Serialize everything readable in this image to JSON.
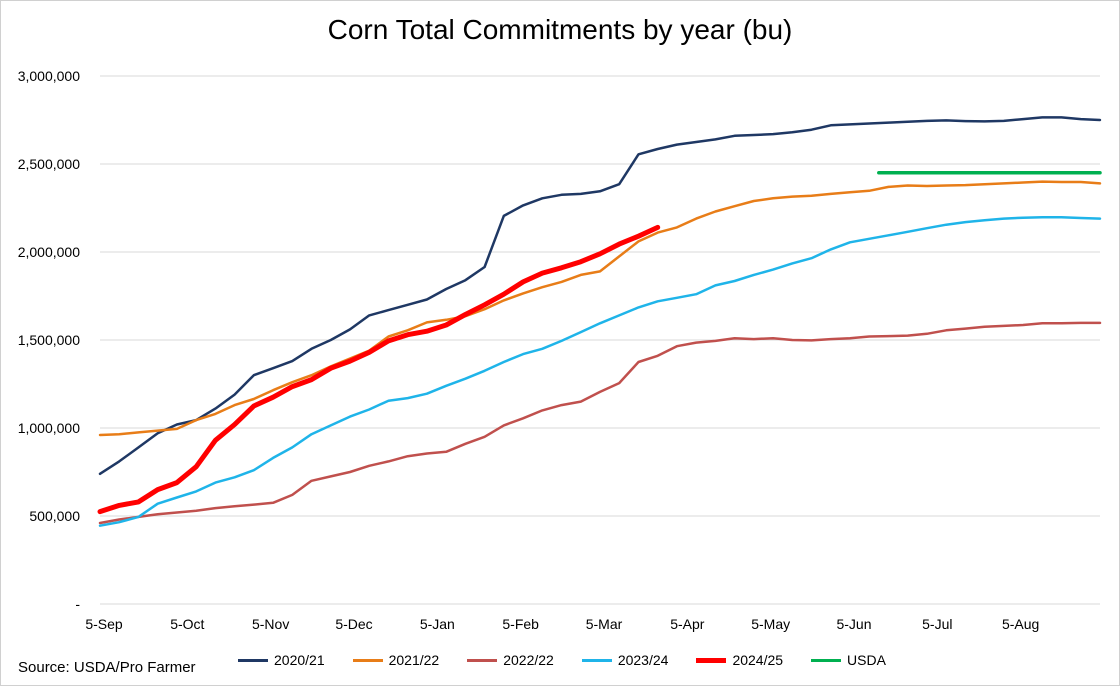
{
  "chart_data": {
    "type": "line",
    "title": "Corn Total Commitments by year (bu)",
    "xlabel": "",
    "ylabel": "",
    "ylim": [
      0,
      3000000
    ],
    "yticks": [
      0,
      500000,
      1000000,
      1500000,
      2000000,
      2500000,
      3000000
    ],
    "ytick_labels": [
      "-",
      "500,000",
      "1,000,000",
      "1,500,000",
      "2,000,000",
      "2,500,000",
      "3,000,000"
    ],
    "xticks": [
      "5-Sep",
      "5-Oct",
      "5-Nov",
      "5-Dec",
      "5-Jan",
      "5-Feb",
      "5-Mar",
      "5-Apr",
      "5-May",
      "5-Jun",
      "5-Jul",
      "5-Aug"
    ],
    "x_unit": "weeks from 5-Sep",
    "grid": "horizontal",
    "legend_position": "bottom",
    "series": [
      {
        "name": "2020/21",
        "color": "#1f3864",
        "width": 2.5,
        "values": [
          740000,
          810000,
          890000,
          970000,
          1020000,
          1045000,
          1110000,
          1190000,
          1300000,
          1340000,
          1380000,
          1450000,
          1500000,
          1560000,
          1640000,
          1670000,
          1700000,
          1730000,
          1790000,
          1840000,
          1915000,
          2205000,
          2265000,
          2305000,
          2325000,
          2330000,
          2345000,
          2385000,
          2555000,
          2585000,
          2610000,
          2625000,
          2640000,
          2660000,
          2665000,
          2670000,
          2680000,
          2695000,
          2720000,
          2725000,
          2730000,
          2735000,
          2740000,
          2745000,
          2748000,
          2744000,
          2742000,
          2745000,
          2755000,
          2765000,
          2765000,
          2755000,
          2750000
        ]
      },
      {
        "name": "2021/22",
        "color": "#e87d18",
        "width": 2.5,
        "values": [
          960000,
          965000,
          975000,
          985000,
          995000,
          1045000,
          1080000,
          1130000,
          1165000,
          1215000,
          1260000,
          1300000,
          1350000,
          1395000,
          1440000,
          1520000,
          1555000,
          1600000,
          1615000,
          1635000,
          1675000,
          1725000,
          1765000,
          1800000,
          1830000,
          1870000,
          1890000,
          1975000,
          2060000,
          2110000,
          2140000,
          2190000,
          2230000,
          2260000,
          2290000,
          2305000,
          2315000,
          2320000,
          2330000,
          2340000,
          2348000,
          2370000,
          2378000,
          2375000,
          2378000,
          2380000,
          2385000,
          2390000,
          2395000,
          2400000,
          2398000,
          2398000,
          2390000
        ]
      },
      {
        "name": "2022/22",
        "color": "#c0504d",
        "width": 2.5,
        "values": [
          460000,
          480000,
          495000,
          510000,
          520000,
          530000,
          545000,
          555000,
          565000,
          575000,
          620000,
          700000,
          725000,
          750000,
          785000,
          810000,
          840000,
          855000,
          865000,
          910000,
          950000,
          1015000,
          1055000,
          1100000,
          1130000,
          1150000,
          1205000,
          1255000,
          1375000,
          1410000,
          1465000,
          1485000,
          1495000,
          1510000,
          1505000,
          1510000,
          1500000,
          1498000,
          1505000,
          1510000,
          1520000,
          1522000,
          1525000,
          1535000,
          1555000,
          1565000,
          1575000,
          1580000,
          1585000,
          1595000,
          1595000,
          1597000,
          1597000
        ]
      },
      {
        "name": "2023/24",
        "color": "#1fb4e9",
        "width": 2.5,
        "values": [
          445000,
          465000,
          495000,
          570000,
          605000,
          640000,
          690000,
          720000,
          760000,
          830000,
          890000,
          965000,
          1015000,
          1065000,
          1105000,
          1155000,
          1170000,
          1195000,
          1240000,
          1280000,
          1325000,
          1375000,
          1420000,
          1450000,
          1495000,
          1545000,
          1595000,
          1640000,
          1685000,
          1720000,
          1740000,
          1760000,
          1810000,
          1835000,
          1870000,
          1900000,
          1935000,
          1965000,
          2015000,
          2055000,
          2075000,
          2095000,
          2115000,
          2135000,
          2155000,
          2170000,
          2180000,
          2190000,
          2195000,
          2198000,
          2198000,
          2193000,
          2190000
        ]
      },
      {
        "name": "2024/25",
        "color": "#ff0000",
        "width": 5,
        "values": [
          525000,
          560000,
          580000,
          650000,
          690000,
          780000,
          930000,
          1020000,
          1125000,
          1175000,
          1235000,
          1275000,
          1340000,
          1380000,
          1430000,
          1495000,
          1530000,
          1550000,
          1585000,
          1645000,
          1700000,
          1760000,
          1830000,
          1880000,
          1910000,
          1945000,
          1990000,
          2045000,
          2090000,
          2140000
        ]
      },
      {
        "name": "USDA",
        "color": "#00b050",
        "width": 3.5,
        "values": [
          2450000,
          2450000,
          2450000,
          2450000,
          2450000,
          2450000,
          2450000,
          2450000,
          2450000,
          2450000,
          2450000,
          2450000
        ],
        "x_start_week": 40.5
      }
    ]
  },
  "source": "Source: USDA/Pro Farmer"
}
